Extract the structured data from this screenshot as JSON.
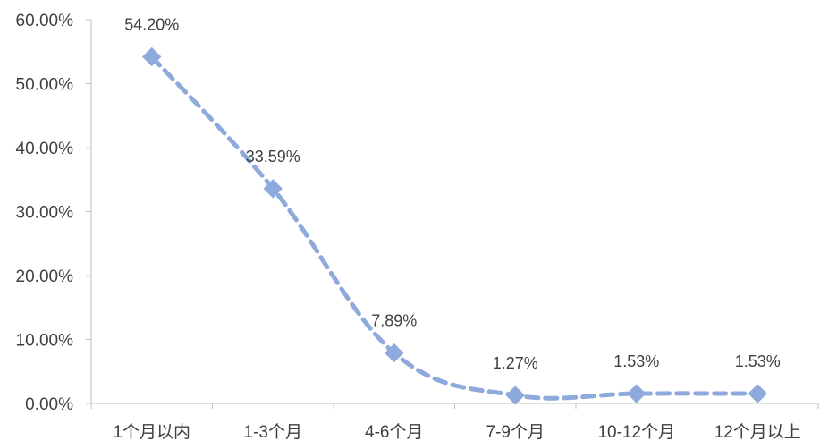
{
  "chart_data": {
    "type": "line",
    "title": "",
    "xlabel": "",
    "ylabel": "",
    "categories": [
      "1个月以内",
      "1-3个月",
      "4-6个月",
      "7-9个月",
      "10-12个月",
      "12个月以上"
    ],
    "series": [
      {
        "values": [
          54.2,
          33.59,
          7.89,
          1.27,
          1.53,
          1.53
        ],
        "data_labels": [
          "54.20%",
          "33.59%",
          "7.89%",
          "1.27%",
          "1.53%",
          "1.53%"
        ]
      }
    ],
    "y_ticks": [
      "0.00%",
      "10.00%",
      "20.00%",
      "30.00%",
      "40.00%",
      "50.00%",
      "60.00%"
    ],
    "ylim": [
      0,
      60
    ],
    "grid": false,
    "line_style": "dashed",
    "marker": "diamond",
    "color": "#8EA9DB"
  }
}
